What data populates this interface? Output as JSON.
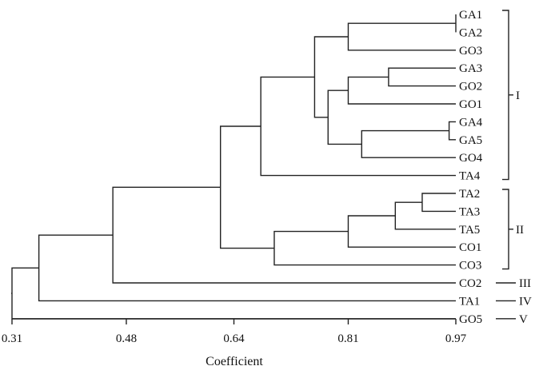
{
  "dendrogram": {
    "axis_label": "Coefficient",
    "axis_ticks": [
      "0.31",
      "0.48",
      "0.64",
      "0.81",
      "0.97"
    ],
    "leaves": [
      "GA1",
      "GA2",
      "GO3",
      "GA3",
      "GO2",
      "GO1",
      "GA4",
      "GA5",
      "GO4",
      "TA4",
      "TA2",
      "TA3",
      "TA5",
      "CO1",
      "CO3",
      "CO2",
      "TA1",
      "GO5"
    ],
    "clusters": [
      {
        "label": "I",
        "members": [
          "GA1",
          "TA4"
        ]
      },
      {
        "label": "II",
        "members": [
          "TA2",
          "CO3"
        ]
      },
      {
        "label": "III",
        "members": [
          "CO2"
        ]
      },
      {
        "label": "IV",
        "members": [
          "TA1"
        ]
      },
      {
        "label": "V",
        "members": [
          "GO5"
        ]
      }
    ],
    "merges": [
      {
        "a": "GA1",
        "b": "GA2",
        "coefficient": 0.97
      },
      {
        "a": "GA4",
        "b": "GA5",
        "coefficient": 0.96
      },
      {
        "a": "TA2",
        "b": "TA3",
        "coefficient": 0.92
      },
      {
        "a": "GA1-GA2",
        "b": "GO3",
        "coefficient": 0.81
      },
      {
        "a": "GA3",
        "b": "GO2",
        "coefficient": 0.87
      },
      {
        "a": "GA3-GO2",
        "b": "GO1",
        "coefficient": 0.81
      },
      {
        "a": "GA4-GA5",
        "b": "GO4",
        "coefficient": 0.83
      },
      {
        "a": "GA3-GO2-GO1",
        "b": "GA4-GA5-GO4",
        "coefficient": 0.78
      },
      {
        "a": "GA1-GA2-GO3",
        "b": "GA3-GO2-GO1-GA4-GA5-GO4",
        "coefficient": 0.76
      },
      {
        "a": "GA1..GO4",
        "b": "TA4",
        "coefficient": 0.68
      },
      {
        "a": "TA2-TA3",
        "b": "TA5",
        "coefficient": 0.88
      },
      {
        "a": "TA2-TA3-TA5",
        "b": "CO1",
        "coefficient": 0.81
      },
      {
        "a": "TA2-TA3-TA5-CO1",
        "b": "CO3",
        "coefficient": 0.7
      },
      {
        "a": "cluster I",
        "b": "cluster II",
        "coefficient": 0.62
      },
      {
        "a": "I-II",
        "b": "CO2",
        "coefficient": 0.46
      },
      {
        "a": "I-II-CO2",
        "b": "TA1",
        "coefficient": 0.35
      },
      {
        "a": "I-II-CO2-TA1",
        "b": "GO5",
        "coefficient": 0.31
      }
    ]
  }
}
